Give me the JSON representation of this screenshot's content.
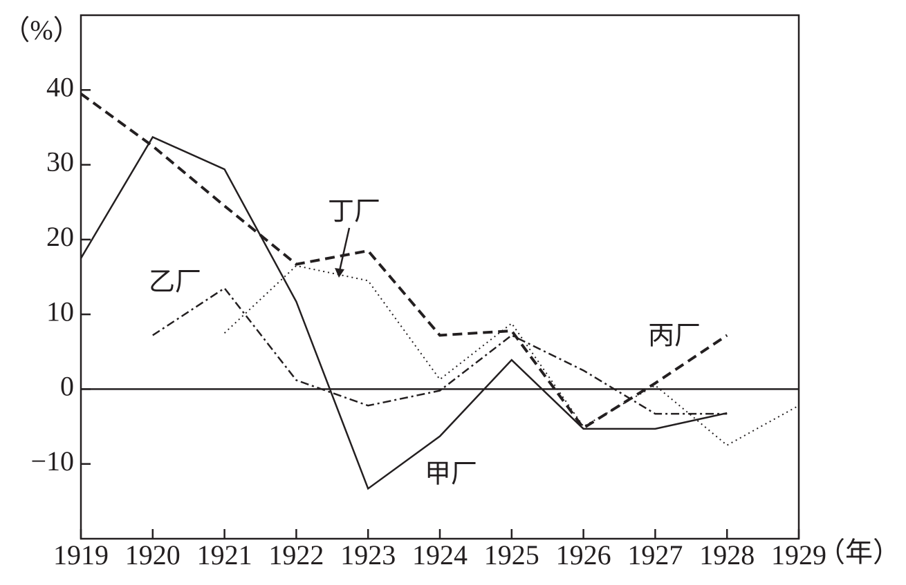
{
  "chart_data": {
    "type": "line",
    "y_unit": "（%）",
    "x_unit": "（年）",
    "x": [
      1919,
      1920,
      1921,
      1922,
      1923,
      1924,
      1925,
      1926,
      1927,
      1928,
      1929
    ],
    "xlim": [
      1919,
      1929
    ],
    "xticks": [
      1919,
      1920,
      1921,
      1922,
      1923,
      1924,
      1925,
      1926,
      1927,
      1928,
      1929
    ],
    "ylim": [
      -20,
      50
    ],
    "yticks": [
      {
        "value": -10,
        "label": "−10"
      },
      0,
      10,
      20,
      30,
      40
    ],
    "zero_line": true,
    "series": [
      {
        "name": "甲厂",
        "color": "#231f20",
        "style": "solid",
        "values": [
          17.5,
          33.7,
          29.4,
          11.7,
          -13.3,
          -6.3,
          3.9,
          -5.3,
          -5.3,
          -3.2,
          null
        ]
      },
      {
        "name": "乙厂",
        "color": "#231f20",
        "style": "dashdot",
        "values": [
          null,
          7.2,
          13.5,
          1.2,
          -2.2,
          -0.2,
          7.2,
          2.5,
          -3.3,
          -3.3,
          null
        ]
      },
      {
        "name": "丙厂",
        "color": "#231f20",
        "style": "dash",
        "values": [
          39.5,
          32.5,
          24.5,
          16.7,
          18.5,
          7.2,
          7.8,
          -5.2,
          0.8,
          7.2,
          null
        ]
      },
      {
        "name": "丁厂",
        "color": "#231f20",
        "style": "dot",
        "values": [
          null,
          null,
          7.5,
          16.5,
          14.5,
          1.3,
          8.8,
          -5.0,
          0.5,
          -7.5,
          -2.2
        ]
      }
    ]
  }
}
